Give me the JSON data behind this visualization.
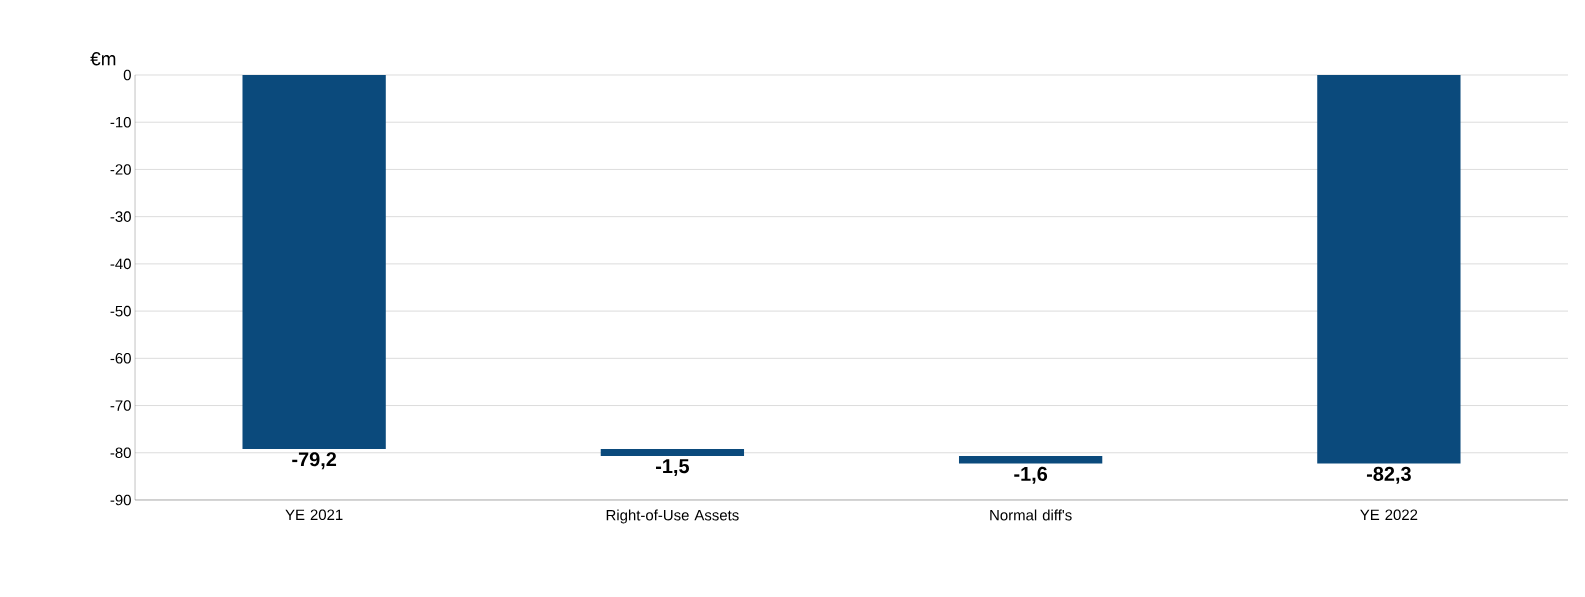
{
  "chart_data": {
    "type": "bar",
    "ylabel": "€m",
    "categories": [
      "YE 2021",
      "Right-of-Use Assets",
      "Normal diff's",
      "YE 2022"
    ],
    "values": [
      -79.2,
      -1.5,
      -1.6,
      -82.3
    ],
    "base": [
      0,
      -79.2,
      -80.7,
      0
    ],
    "value_labels": [
      "-79,2",
      "-1,5",
      "-1,6",
      "-82,3"
    ],
    "color": "#0b4a7c",
    "ylim": [
      -90,
      0
    ],
    "yticks": [
      -90,
      -80,
      -70,
      -60,
      -50,
      -40,
      -30,
      -20,
      -10,
      0
    ],
    "grid": "y"
  }
}
